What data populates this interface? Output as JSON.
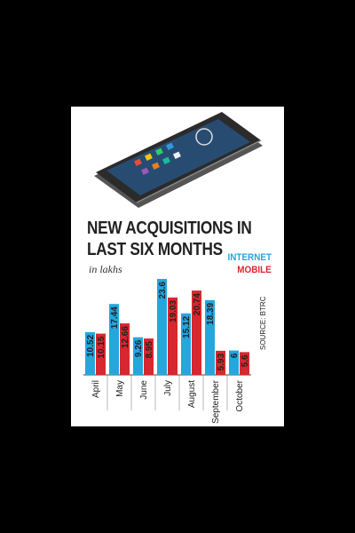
{
  "title_line1": "NEW ACQUISITIONS IN",
  "title_line2": "LAST SIX MONTHS",
  "subtitle": "in lakhs",
  "source": "SOURCE: BTRC",
  "colors": {
    "internet": "#23a7de",
    "mobile": "#d8272f",
    "text": "#222222",
    "background": "#ffffff",
    "page": "#000000"
  },
  "chart_data": {
    "type": "bar",
    "title": "NEW ACQUISITIONS IN LAST SIX MONTHS",
    "subtitle": "in lakhs",
    "categories": [
      "April",
      "May",
      "June",
      "July",
      "August",
      "September",
      "October"
    ],
    "series": [
      {
        "name": "INTERNET",
        "color": "#23a7de",
        "values": [
          10.52,
          17.44,
          9.26,
          23.6,
          15.12,
          18.39,
          6
        ],
        "labels": [
          "10.52",
          "17.44",
          "9.26",
          "23.6",
          "15.12",
          "18.39",
          "6"
        ]
      },
      {
        "name": "MOBILE",
        "color": "#d8272f",
        "values": [
          10.15,
          12.66,
          8.95,
          19.03,
          20.74,
          5.93,
          5.6
        ],
        "labels": [
          "10.15",
          "12.66",
          "8.95",
          "19.03",
          "20.74",
          "5.93",
          "5.6"
        ]
      }
    ],
    "ylim": [
      0,
      23.6
    ],
    "legend": "top-right",
    "grid": false,
    "data_labels": "inside-bars-vertical"
  }
}
